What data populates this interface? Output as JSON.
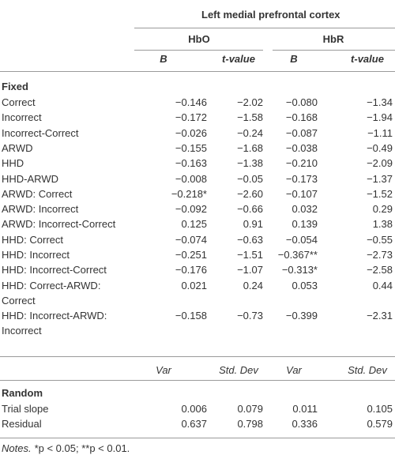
{
  "table": {
    "title": "Left medial prefrontal cortex",
    "groups": [
      "HbO",
      "HbR"
    ],
    "columns": [
      "B",
      "t-value",
      "B",
      "t-value"
    ],
    "sections": [
      {
        "title": "Fixed",
        "rows": [
          [
            "Correct",
            "−0.146",
            "−2.02",
            "−0.080",
            "−1.34"
          ],
          [
            "Incorrect",
            "−0.172",
            "−1.58",
            "−0.168",
            "−1.94"
          ],
          [
            "Incorrect-Correct",
            "−0.026",
            "−0.24",
            "−0.087",
            "−1.11"
          ],
          [
            "ARWD",
            "−0.155",
            "−1.68",
            "−0.038",
            "−0.49"
          ],
          [
            "HHD",
            "−0.163",
            "−1.38",
            "−0.210",
            "−2.09"
          ],
          [
            "HHD-ARWD",
            "−0.008",
            "−0.05",
            "−0.173",
            "−1.37"
          ],
          [
            "ARWD: Correct",
            "−0.218*",
            "−2.60",
            "−0.107",
            "−1.52"
          ],
          [
            "ARWD: Incorrect",
            "−0.092",
            "−0.66",
            "0.032",
            "0.29"
          ],
          [
            "ARWD: Incorrect-Correct",
            "0.125",
            "0.91",
            "0.139",
            "1.38"
          ],
          [
            "HHD: Correct",
            "−0.074",
            "−0.63",
            "−0.054",
            "−0.55"
          ],
          [
            "HHD: Incorrect",
            "−0.251",
            "−1.51",
            "−0.367**",
            "−2.73"
          ],
          [
            "HHD: Incorrect-Correct",
            "−0.176",
            "−1.07",
            "−0.313*",
            "−2.58"
          ],
          [
            "HHD: Correct-ARWD: Correct",
            "0.021",
            "0.24",
            "0.053",
            "0.44"
          ],
          [
            "HHD: Incorrect-ARWD: Incorrect",
            "−0.158",
            "−0.73",
            "−0.399",
            "−2.31"
          ]
        ]
      },
      {
        "title": "Random",
        "columns": [
          "Var",
          "Std. Dev",
          "Var",
          "Std. Dev"
        ],
        "rows": [
          [
            "Trial slope",
            "0.006",
            "0.079",
            "0.011",
            "0.105"
          ],
          [
            "Residual",
            "0.637",
            "0.798",
            "0.336",
            "0.579"
          ]
        ]
      }
    ]
  },
  "notes": {
    "label": "Notes.",
    "text": "*p < 0.05; **p < 0.01."
  }
}
